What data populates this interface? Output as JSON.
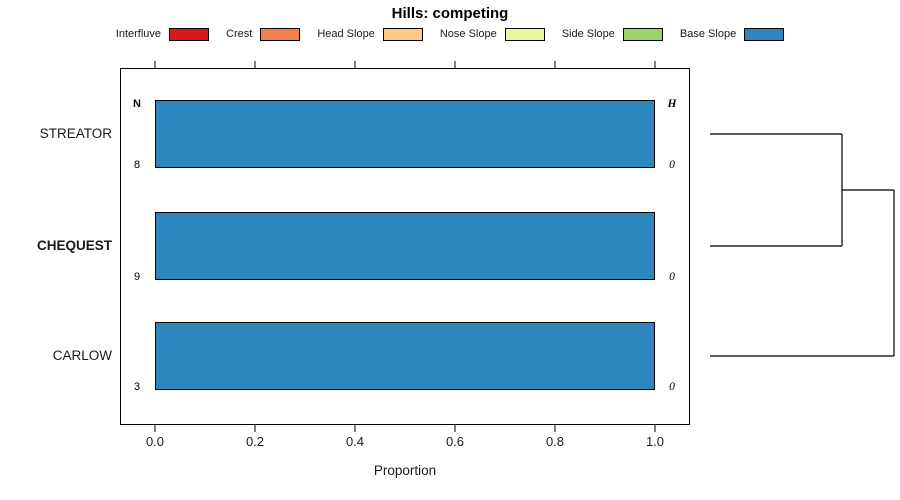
{
  "title": "Hills: competing",
  "legend": {
    "items": [
      {
        "label": "Interfluve",
        "color": "#d7191c"
      },
      {
        "label": "Crest",
        "color": "#f1804a"
      },
      {
        "label": "Head Slope",
        "color": "#fec980"
      },
      {
        "label": "Nose Slope",
        "color": "#eaf79f"
      },
      {
        "label": "Side Slope",
        "color": "#9cd567"
      },
      {
        "label": "Base Slope",
        "color": "#2e86bf"
      }
    ]
  },
  "axis": {
    "xlabel": "Proportion",
    "xticks": [
      "0.0",
      "0.2",
      "0.4",
      "0.6",
      "0.8",
      "1.0"
    ],
    "n_header": "N",
    "h_header": "H"
  },
  "rows": [
    {
      "label": "STREATOR",
      "n": "8",
      "h": "0"
    },
    {
      "label": "CHEQUEST",
      "n": "9",
      "h": "0"
    },
    {
      "label": "CARLOW",
      "n": "3",
      "h": "0"
    }
  ],
  "chart_data": {
    "type": "bar",
    "orientation": "horizontal",
    "title": "Hills: competing",
    "xlabel": "Proportion",
    "xlim": [
      0,
      1
    ],
    "grid": false,
    "legend_position": "top",
    "categories": [
      "STREATOR",
      "CHEQUEST",
      "CARLOW"
    ],
    "series": [
      {
        "name": "Interfluve",
        "values": [
          0,
          0,
          0
        ]
      },
      {
        "name": "Crest",
        "values": [
          0,
          0,
          0
        ]
      },
      {
        "name": "Head Slope",
        "values": [
          0,
          0,
          0
        ]
      },
      {
        "name": "Nose Slope",
        "values": [
          0,
          0,
          0
        ]
      },
      {
        "name": "Side Slope",
        "values": [
          0,
          0,
          0
        ]
      },
      {
        "name": "Base Slope",
        "values": [
          1.0,
          1.0,
          1.0
        ]
      }
    ],
    "n_values": [
      8,
      9,
      3
    ],
    "h_values": [
      0,
      0,
      0
    ],
    "dendrogram": {
      "leaves": [
        "STREATOR",
        "CHEQUEST",
        "CARLOW"
      ],
      "merges": [
        [
          "STREATOR",
          "CHEQUEST"
        ],
        [
          [
            "STREATOR",
            "CHEQUEST"
          ],
          "CARLOW"
        ]
      ]
    }
  }
}
